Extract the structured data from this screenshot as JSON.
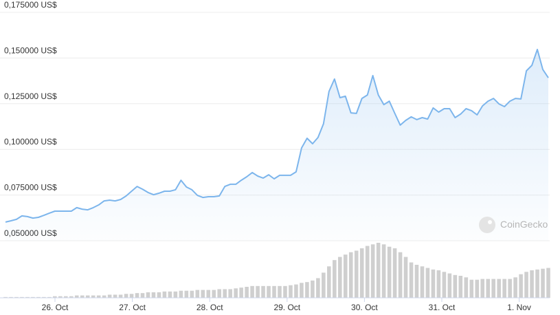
{
  "chart_data": {
    "type": "line",
    "yticks": [
      {
        "value": 0.05,
        "label": "0,050000 US$"
      },
      {
        "value": 0.075,
        "label": "0,075000 US$"
      },
      {
        "value": 0.1,
        "label": "0,100000 US$"
      },
      {
        "value": 0.125,
        "label": "0,125000 US$"
      },
      {
        "value": 0.15,
        "label": "0,150000 US$"
      },
      {
        "value": 0.175,
        "label": "0,175000 US$"
      }
    ],
    "ylim": [
      0.05,
      0.175
    ],
    "xticks": [
      "26. Oct",
      "27. Oct",
      "28. Oct",
      "29. Oct",
      "30. Oct",
      "31. Oct",
      "1. Nov"
    ],
    "grid": true,
    "watermark": "CoinGecko",
    "price": {
      "color": "#7cb5ec",
      "values": [
        0.0602,
        0.0609,
        0.0617,
        0.0636,
        0.0632,
        0.0624,
        0.0628,
        0.0639,
        0.0651,
        0.0662,
        0.0662,
        0.0662,
        0.0662,
        0.0681,
        0.0673,
        0.0669,
        0.0681,
        0.0696,
        0.0718,
        0.0722,
        0.0718,
        0.0726,
        0.0745,
        0.0771,
        0.0797,
        0.0782,
        0.0764,
        0.0752,
        0.076,
        0.0771,
        0.0771,
        0.0779,
        0.0831,
        0.0794,
        0.0779,
        0.0748,
        0.0737,
        0.0741,
        0.0741,
        0.0745,
        0.0797,
        0.0809,
        0.0809,
        0.0831,
        0.085,
        0.0873,
        0.0854,
        0.0843,
        0.0861,
        0.0839,
        0.0858,
        0.0858,
        0.0858,
        0.0877,
        0.1008,
        0.1061,
        0.1031,
        0.1065,
        0.114,
        0.1317,
        0.1385,
        0.1283,
        0.1291,
        0.12,
        0.1197,
        0.1279,
        0.1298,
        0.1404,
        0.1298,
        0.1245,
        0.1264,
        0.1197,
        0.1133,
        0.1159,
        0.1178,
        0.1163,
        0.1174,
        0.1166,
        0.1227,
        0.1204,
        0.1223,
        0.1223,
        0.1174,
        0.1193,
        0.1223,
        0.1212,
        0.1189,
        0.1238,
        0.1264,
        0.1279,
        0.1249,
        0.1234,
        0.1264,
        0.1279,
        0.1276,
        0.143,
        0.146,
        0.1547,
        0.1437,
        0.1392
      ]
    },
    "volume": {
      "color": "#cfcfcf",
      "values": [
        1,
        1,
        1,
        1,
        1,
        1,
        1,
        1,
        1,
        2,
        2,
        2,
        2,
        3,
        3,
        3,
        3,
        3,
        3,
        4,
        4,
        4,
        5,
        5,
        6,
        6,
        7,
        7,
        7,
        8,
        8,
        8,
        9,
        9,
        9,
        10,
        10,
        10,
        10,
        11,
        11,
        11,
        12,
        13,
        14,
        15,
        15,
        15,
        15,
        15,
        15,
        15,
        16,
        17,
        19,
        20,
        22,
        25,
        32,
        40,
        48,
        52,
        55,
        58,
        60,
        63,
        66,
        68,
        70,
        68,
        65,
        63,
        58,
        52,
        45,
        42,
        40,
        38,
        36,
        35,
        33,
        31,
        29,
        28,
        26,
        23,
        23,
        24,
        24,
        24,
        24,
        24,
        24,
        26,
        30,
        33,
        35,
        36,
        37,
        38
      ]
    }
  }
}
